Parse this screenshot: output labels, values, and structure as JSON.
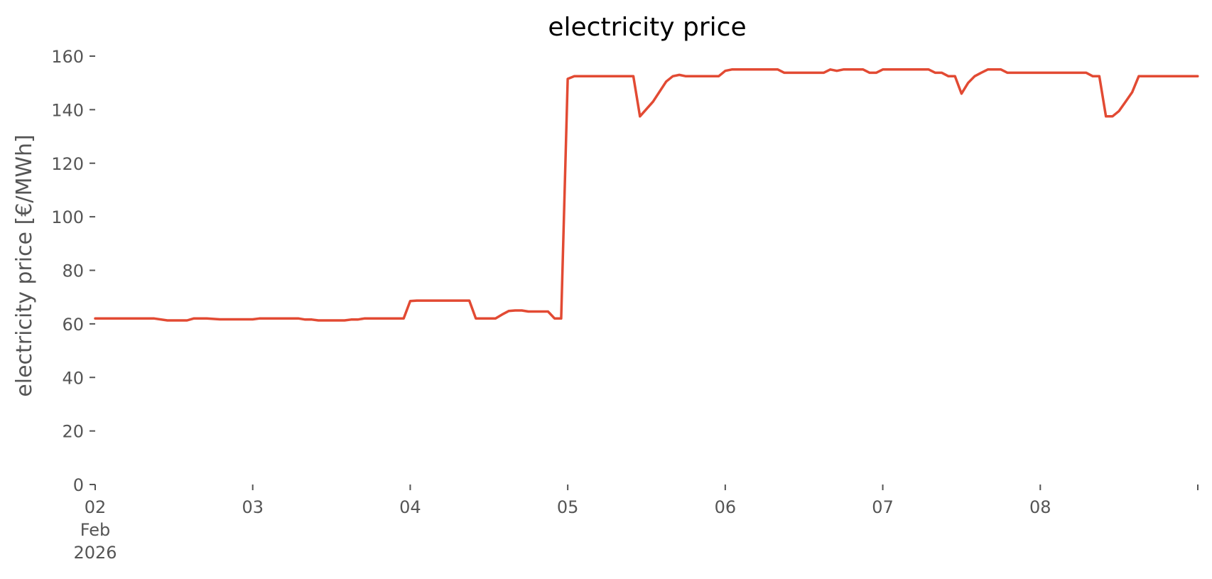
{
  "chart_data": {
    "type": "line",
    "title": "electricity price",
    "xlabel": "",
    "ylabel": "electricity price [€/MWh]",
    "ylim": [
      0,
      160
    ],
    "yticks": [
      0,
      20,
      40,
      60,
      80,
      100,
      120,
      140,
      160
    ],
    "xlim": [
      "2026-02-02 00:00",
      "2026-02-09 00:00"
    ],
    "xticks": [
      {
        "x": "2026-02-02",
        "label": "02",
        "sublabels": [
          "Feb",
          "2026"
        ]
      },
      {
        "x": "2026-02-03",
        "label": "03",
        "sublabels": []
      },
      {
        "x": "2026-02-04",
        "label": "04",
        "sublabels": []
      },
      {
        "x": "2026-02-05",
        "label": "05",
        "sublabels": []
      },
      {
        "x": "2026-02-06",
        "label": "06",
        "sublabels": []
      },
      {
        "x": "2026-02-07",
        "label": "07",
        "sublabels": []
      },
      {
        "x": "2026-02-08",
        "label": "08",
        "sublabels": []
      },
      {
        "x": "2026-02-09",
        "label": "",
        "sublabels": []
      }
    ],
    "grid": false,
    "color": "#E24A33",
    "series": [
      {
        "x": [
          "2026-02-02 00:00",
          "2026-02-02 09:00",
          "2026-02-02 11:00",
          "2026-02-02 14:00",
          "2026-02-02 15:00",
          "2026-02-02 17:00",
          "2026-02-02 19:00",
          "2026-02-02 21:00",
          "2026-02-03 00:00",
          "2026-02-03 01:00",
          "2026-02-03 07:00",
          "2026-02-03 08:00",
          "2026-02-03 09:00",
          "2026-02-03 10:00",
          "2026-02-03 14:00",
          "2026-02-03 15:00",
          "2026-02-03 16:00",
          "2026-02-03 17:00",
          "2026-02-03 23:00",
          "2026-02-04 00:00",
          "2026-02-04 01:00",
          "2026-02-04 09:00",
          "2026-02-04 10:00",
          "2026-02-04 13:00",
          "2026-02-04 14:00",
          "2026-02-04 15:00",
          "2026-02-04 16:00",
          "2026-02-04 17:00",
          "2026-02-04 18:00",
          "2026-02-04 21:00",
          "2026-02-04 22:00",
          "2026-02-04 23:00",
          "2026-02-05 00:00",
          "2026-02-05 01:00",
          "2026-02-05 10:00",
          "2026-02-05 11:00",
          "2026-02-05 13:00",
          "2026-02-05 15:00",
          "2026-02-05 16:00",
          "2026-02-05 17:00",
          "2026-02-05 18:00",
          "2026-02-05 23:00",
          "2026-02-06 00:00",
          "2026-02-06 01:00",
          "2026-02-06 08:00",
          "2026-02-06 09:00",
          "2026-02-06 15:00",
          "2026-02-06 16:00",
          "2026-02-06 17:00",
          "2026-02-06 18:00",
          "2026-02-06 21:00",
          "2026-02-06 22:00",
          "2026-02-06 23:00",
          "2026-02-07 00:00",
          "2026-02-07 07:00",
          "2026-02-07 08:00",
          "2026-02-07 09:00",
          "2026-02-07 10:00",
          "2026-02-07 11:00",
          "2026-02-07 12:00",
          "2026-02-07 13:00",
          "2026-02-07 14:00",
          "2026-02-07 15:00",
          "2026-02-07 16:00",
          "2026-02-07 17:00",
          "2026-02-07 18:00",
          "2026-02-07 19:00",
          "2026-02-08 07:00",
          "2026-02-08 08:00",
          "2026-02-08 09:00",
          "2026-02-08 10:00",
          "2026-02-08 11:00",
          "2026-02-08 12:00",
          "2026-02-08 13:00",
          "2026-02-08 14:00",
          "2026-02-08 15:00",
          "2026-02-08 16:00",
          "2026-02-08 23:59"
        ],
        "values": [
          62,
          62,
          61.3,
          61.3,
          62,
          62,
          61.7,
          61.7,
          61.7,
          62,
          62,
          61.6,
          61.6,
          61.3,
          61.3,
          61.6,
          61.6,
          62,
          62,
          68.5,
          68.7,
          68.7,
          62,
          62,
          63.5,
          64.8,
          65,
          65,
          64.6,
          64.6,
          62,
          62,
          151.5,
          152.5,
          152.5,
          137.5,
          143,
          150.5,
          152.5,
          153,
          152.5,
          152.5,
          154.5,
          155,
          155,
          153.8,
          153.8,
          155,
          154.5,
          155,
          155,
          153.8,
          153.8,
          155,
          155,
          153.8,
          153.8,
          152.5,
          152.5,
          146,
          150,
          152.5,
          153.8,
          155,
          155,
          155,
          153.8,
          153.8,
          152.5,
          152.5,
          137.5,
          137.5,
          139.5,
          143,
          146.5,
          152.5,
          152.5,
          152.5
        ]
      }
    ]
  }
}
